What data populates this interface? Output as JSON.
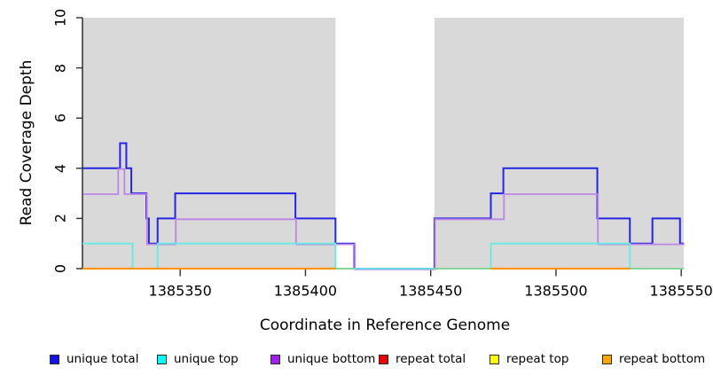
{
  "axes": {
    "x_label": "Coordinate in Reference Genome",
    "y_label": "Read Coverage Depth"
  },
  "legend": {
    "items": [
      {
        "id": "unique-total",
        "label": "unique total",
        "color": "#1414E6"
      },
      {
        "id": "unique-top",
        "label": "unique top",
        "color": "#00FFFF"
      },
      {
        "id": "unique-bottom",
        "label": "unique bottom",
        "color": "#A020F0"
      },
      {
        "id": "repeat-total",
        "label": "repeat total",
        "color": "#EE0000"
      },
      {
        "id": "repeat-top",
        "label": "repeat top",
        "color": "#FFFF00"
      },
      {
        "id": "repeat-bottom",
        "label": "repeat bottom",
        "color": "#FFA500"
      }
    ]
  },
  "chart_data": {
    "type": "line",
    "subtype": "step-coverage",
    "title": "",
    "xlabel": "Coordinate in Reference Genome",
    "ylabel": "Read Coverage Depth",
    "x_domain": [
      1385311,
      1385551
    ],
    "y_domain": [
      0,
      10
    ],
    "grid": false,
    "legend_position": "bottom",
    "shade_color": "#D9D9D9",
    "shaded_regions": [
      [
        1385311,
        1385412
      ],
      [
        1385451.5,
        1385551
      ]
    ],
    "x_ticks": [
      {
        "v": 1385350,
        "label": "1385350"
      },
      {
        "v": 1385400,
        "label": "1385400"
      },
      {
        "v": 1385450,
        "label": "1385450"
      },
      {
        "v": 1385500,
        "label": "1385500"
      },
      {
        "v": 1385550,
        "label": "1385550"
      }
    ],
    "y_ticks": [
      {
        "v": 0,
        "label": "0"
      },
      {
        "v": 2,
        "label": "2"
      },
      {
        "v": 4,
        "label": "4"
      },
      {
        "v": 6,
        "label": "6"
      },
      {
        "v": 8,
        "label": "8"
      },
      {
        "v": 10,
        "label": "10"
      }
    ],
    "series": [
      {
        "id": "unique-total",
        "name": "unique total",
        "legend_color": "#1414E6",
        "line_color": "#2525E3",
        "z": 1,
        "stroke_width": 2,
        "segments": [
          [
            [
              1385311,
              4
            ],
            [
              1385326,
              4
            ],
            [
              1385326,
              5
            ],
            [
              1385328.5,
              5
            ],
            [
              1385328.5,
              4
            ],
            [
              1385330.5,
              4
            ],
            [
              1385330.5,
              3
            ],
            [
              1385336.5,
              3
            ],
            [
              1385336.5,
              2
            ],
            [
              1385337.5,
              2
            ],
            [
              1385337.5,
              1
            ],
            [
              1385341,
              1
            ],
            [
              1385341,
              2
            ],
            [
              1385348,
              2
            ],
            [
              1385348,
              3
            ],
            [
              1385396,
              3
            ],
            [
              1385396,
              2
            ],
            [
              1385412,
              2
            ],
            [
              1385412,
              1
            ],
            [
              1385419.5,
              1
            ],
            [
              1385419.5,
              0
            ],
            [
              1385451.5,
              0
            ],
            [
              1385451.5,
              2
            ],
            [
              1385474,
              2
            ],
            [
              1385474,
              3
            ],
            [
              1385479,
              3
            ],
            [
              1385479,
              4
            ],
            [
              1385516.5,
              4
            ],
            [
              1385516.5,
              2
            ],
            [
              1385529.5,
              2
            ],
            [
              1385529.5,
              1
            ],
            [
              1385538.5,
              1
            ],
            [
              1385538.5,
              2
            ],
            [
              1385549.5,
              2
            ],
            [
              1385549.5,
              1
            ],
            [
              1385551,
              1
            ]
          ]
        ]
      },
      {
        "id": "unique-bottom",
        "name": "unique bottom",
        "legend_color": "#A020F0",
        "line_color": "#BD85E6",
        "z": 2,
        "stroke_width": 1.8,
        "dx": 0.7,
        "dy": 0.9,
        "segments": [
          [
            [
              1385311,
              3
            ],
            [
              1385325,
              3
            ],
            [
              1385325,
              4
            ],
            [
              1385327.5,
              4
            ],
            [
              1385327.5,
              3
            ],
            [
              1385336.5,
              3
            ],
            [
              1385336.5,
              1
            ],
            [
              1385348,
              1
            ],
            [
              1385348,
              2
            ],
            [
              1385396,
              2
            ],
            [
              1385396,
              1
            ],
            [
              1385419.5,
              1
            ],
            [
              1385419.5,
              0
            ],
            [
              1385451.5,
              0
            ],
            [
              1385451.5,
              2
            ],
            [
              1385479,
              2
            ],
            [
              1385479,
              3
            ],
            [
              1385516.5,
              3
            ],
            [
              1385516.5,
              1
            ],
            [
              1385551,
              1
            ]
          ]
        ]
      },
      {
        "id": "unique-top",
        "name": "unique top",
        "legend_color": "#00FFFF",
        "line_color": "#63ECE2",
        "z": 3,
        "stroke_width": 1.8,
        "segments": [
          [
            [
              1385311,
              1
            ],
            [
              1385331,
              1
            ],
            [
              1385331,
              0
            ],
            [
              1385341,
              0
            ],
            [
              1385341,
              1
            ],
            [
              1385412,
              1
            ],
            [
              1385412,
              0
            ],
            [
              1385474,
              0
            ],
            [
              1385474,
              1
            ],
            [
              1385529.5,
              1
            ],
            [
              1385529.5,
              0
            ],
            [
              1385551,
              0
            ]
          ]
        ]
      },
      {
        "id": "repeat-total",
        "name": "repeat total",
        "legend_color": "#EE0000",
        "line_color": "#E60000",
        "z": 4,
        "stroke_width": 1.2,
        "segments": [
          [
            [
              1385311,
              0
            ],
            [
              1385412,
              0
            ]
          ],
          [
            [
              1385474,
              0
            ],
            [
              1385529.5,
              0
            ]
          ]
        ]
      },
      {
        "id": "repeat-top",
        "name": "repeat top",
        "legend_color": "#FFFF00",
        "line_color": "#84D18C",
        "z": 5,
        "stroke_width": 1.8,
        "segments": [
          [
            [
              1385412,
              0
            ],
            [
              1385419.5,
              0
            ]
          ],
          [
            [
              1385451.5,
              0
            ],
            [
              1385474,
              0
            ]
          ],
          [
            [
              1385529.5,
              0
            ],
            [
              1385551,
              0
            ]
          ]
        ]
      },
      {
        "id": "repeat-bottom",
        "name": "repeat bottom",
        "legend_color": "#FFA500",
        "line_color": "#FF9500",
        "z": 6,
        "stroke_width": 2.2,
        "segments": [
          [
            [
              1385311,
              0
            ],
            [
              1385412,
              0
            ]
          ],
          [
            [
              1385474,
              0
            ],
            [
              1385529.5,
              0
            ]
          ]
        ]
      }
    ]
  }
}
